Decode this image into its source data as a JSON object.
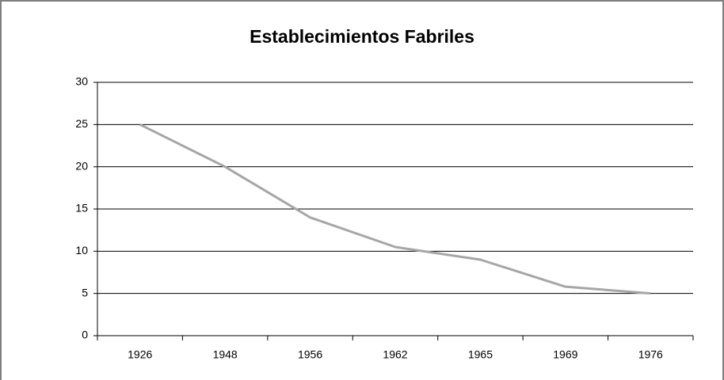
{
  "chart_data": {
    "type": "line",
    "title": "Establecimientos Fabriles",
    "categories": [
      "1926",
      "1948",
      "1956",
      "1962",
      "1965",
      "1969",
      "1976"
    ],
    "values": [
      25,
      20,
      14,
      10.5,
      9,
      5.8,
      5
    ],
    "color": "#a6a6a6",
    "ylim": [
      0,
      30
    ],
    "yticks": [
      0,
      5,
      10,
      15,
      20,
      25,
      30
    ],
    "grid": true
  }
}
